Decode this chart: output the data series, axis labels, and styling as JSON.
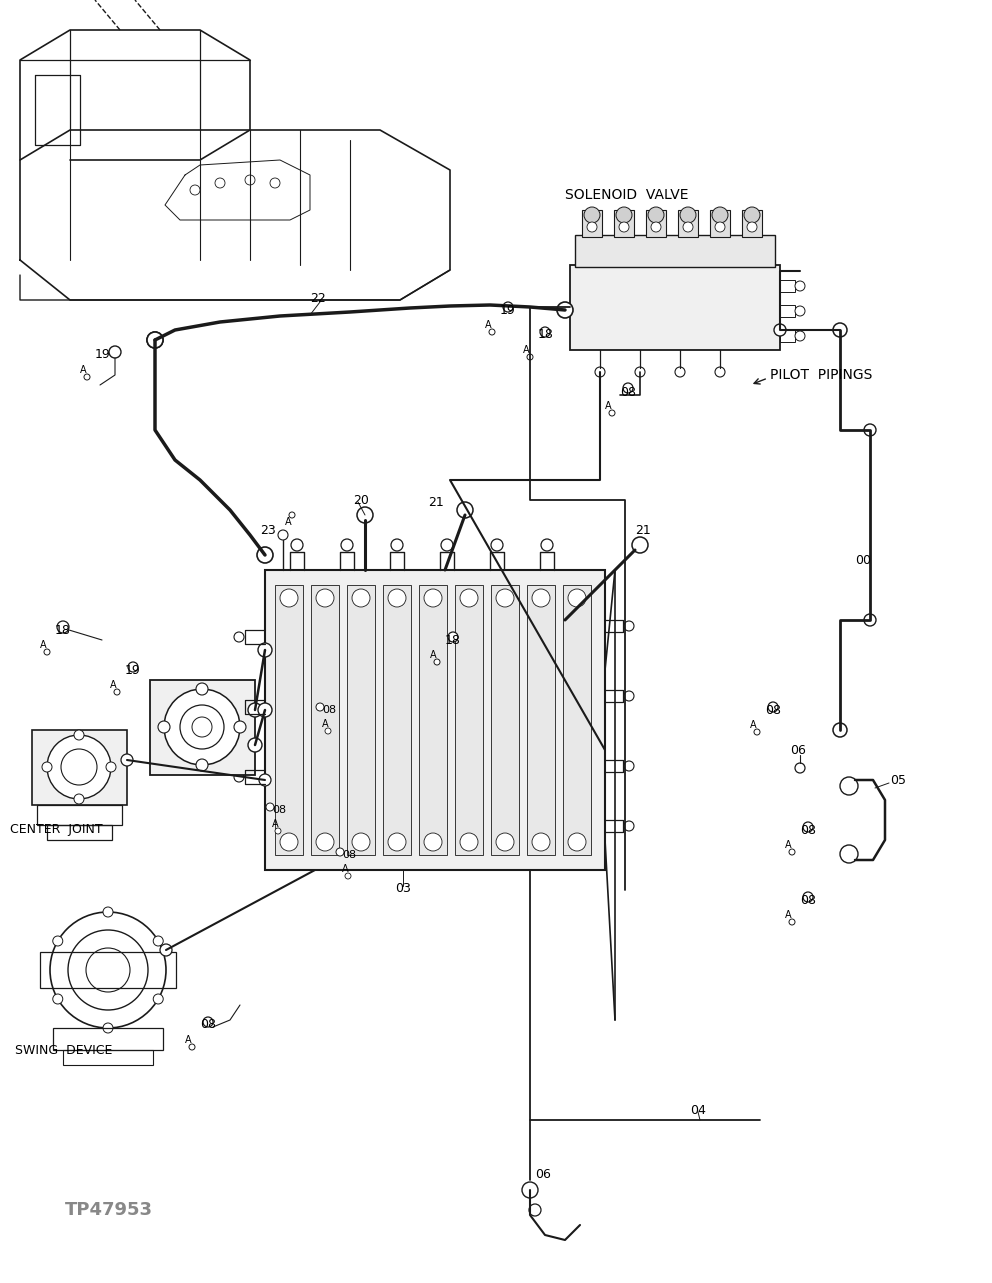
{
  "background_color": "#ffffff",
  "fig_width": 9.92,
  "fig_height": 12.83,
  "dpi": 100,
  "labels": {
    "solenoid_valve": "SOLENOID  VALVE",
    "pilot_pipings": "PILOT  PIPINGS",
    "center_joint": "CENTER  JOINT",
    "swing_device": "SWING  DEVICE",
    "part_number": "TP47953"
  },
  "line_color": "#1a1a1a",
  "text_color": "#000000",
  "gray_text": "#888888"
}
